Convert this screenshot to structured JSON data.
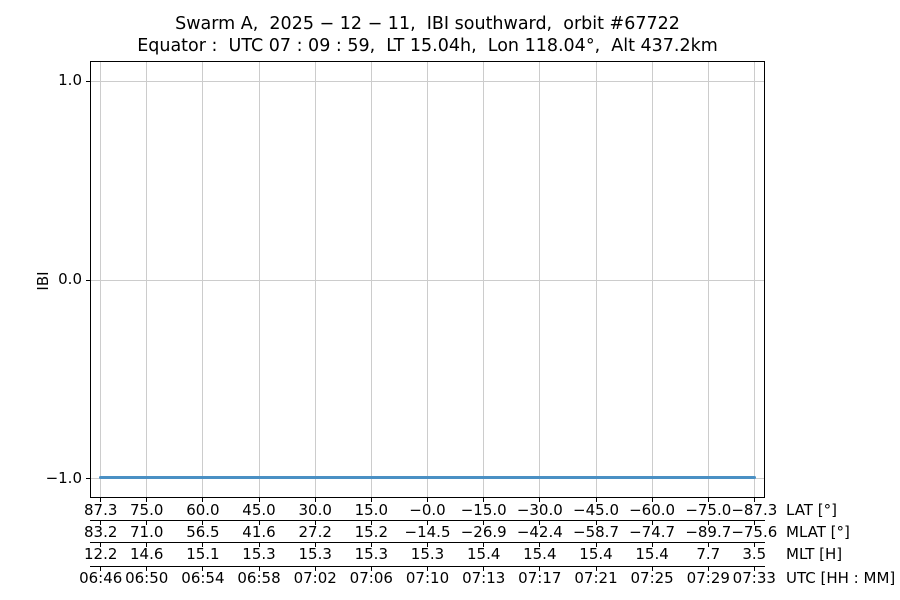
{
  "header": {
    "title_line1": "Swarm A,  2025 − 12 − 11,  IBI southward,  orbit #67722",
    "title_line2": "Equator :  UTC 07 : 09 : 59,  LT 15.04h,  Lon 118.04°,  Alt 437.2km"
  },
  "chart_data": {
    "type": "line",
    "title": "Swarm A, 2025-12-11, IBI southward, orbit #67722",
    "subtitle": "Equator: UTC 07:09:59, LT 15.04h, Lon 118.04°, Alt 437.2km",
    "ylabel": "IBI",
    "ylim": [
      -1.1,
      1.1
    ],
    "yticks": [
      "1.0",
      "0.0",
      "-1.0"
    ],
    "grid": true,
    "legend": "none",
    "x_axis_mapping": "linear in geographic latitude from 87.3 to -87.3",
    "series": [
      {
        "name": "IBI",
        "constant_value": -1.0,
        "x_lat": [
          87.3,
          75.0,
          60.0,
          45.0,
          30.0,
          15.0,
          -0.0,
          -15.0,
          -30.0,
          -45.0,
          -60.0,
          -75.0,
          -87.3
        ],
        "values": [
          -1.0,
          -1.0,
          -1.0,
          -1.0,
          -1.0,
          -1.0,
          -1.0,
          -1.0,
          -1.0,
          -1.0,
          -1.0,
          -1.0,
          -1.0
        ]
      }
    ],
    "x_axis_rows": [
      {
        "label": "LAT [°]",
        "values": [
          "87.3",
          "75.0",
          "60.0",
          "45.0",
          "30.0",
          "15.0",
          "-0.0",
          "-15.0",
          "-30.0",
          "-45.0",
          "-60.0",
          "-75.0",
          "-87.3"
        ]
      },
      {
        "label": "MLAT [°]",
        "values": [
          "83.2",
          "71.0",
          "56.5",
          "41.6",
          "27.2",
          "15.2",
          "-14.5",
          "-26.9",
          "-42.4",
          "-58.7",
          "-74.7",
          "-89.7",
          "-75.6"
        ]
      },
      {
        "label": "MLT [H]",
        "values": [
          "12.2",
          "14.6",
          "15.1",
          "15.3",
          "15.3",
          "15.3",
          "15.3",
          "15.4",
          "15.4",
          "15.4",
          "15.4",
          "7.7",
          "3.5"
        ]
      },
      {
        "label": "UTC [HH : MM]",
        "values": [
          "06:46",
          "06:50",
          "06:54",
          "06:58",
          "07:02",
          "07:06",
          "07:10",
          "07:13",
          "07:17",
          "07:21",
          "07:25",
          "07:29",
          "07:33"
        ]
      }
    ],
    "colors": {
      "line": "#4a90c4",
      "grid": "#cccccc",
      "spine": "#000000",
      "text": "#000000",
      "background": "#ffffff"
    }
  }
}
